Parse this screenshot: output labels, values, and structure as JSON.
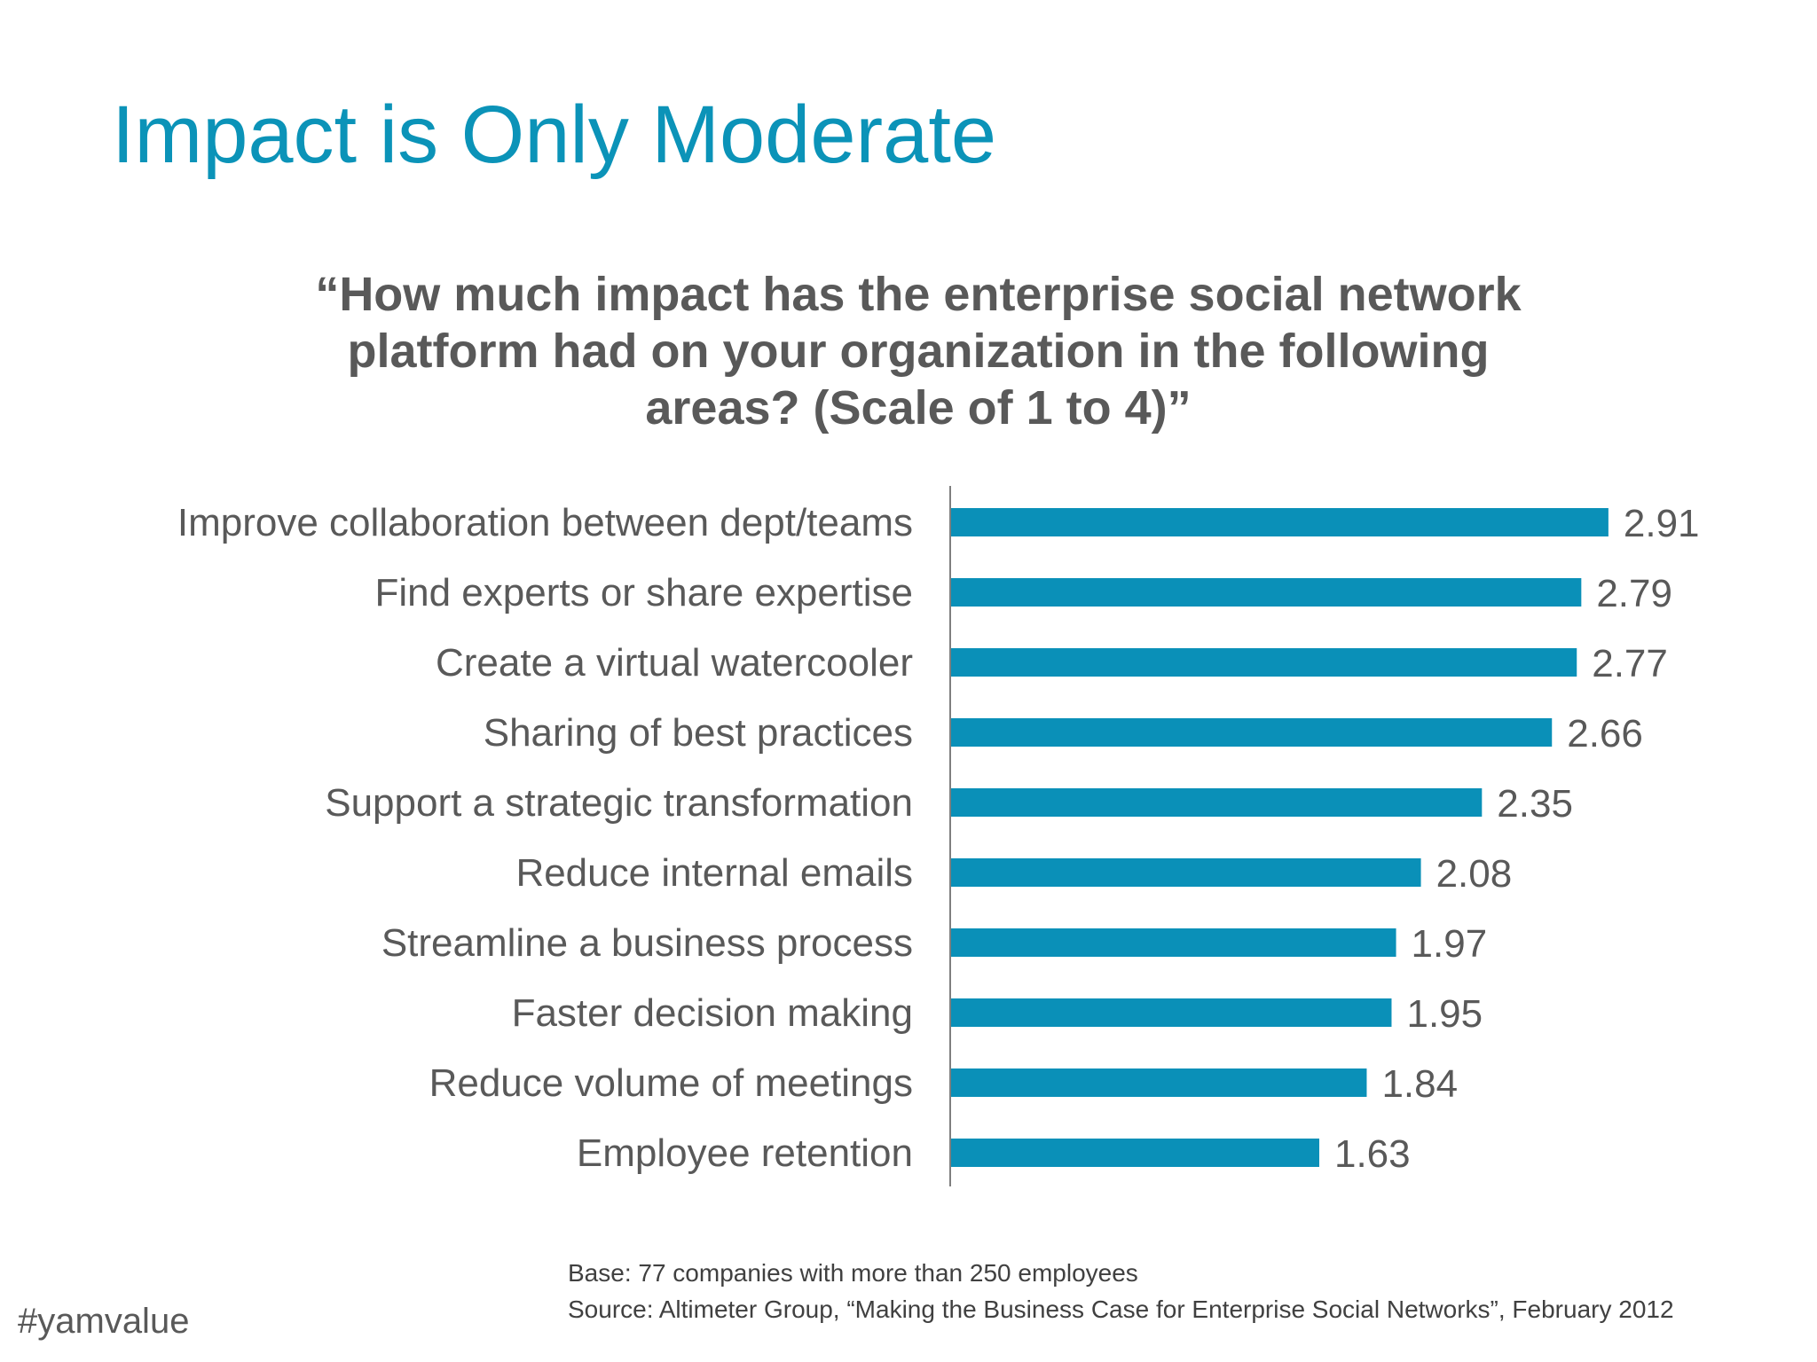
{
  "slide": {
    "title": "Impact is Only Moderate",
    "question_lines": [
      "“How much impact has the enterprise social network",
      "platform had on your organization in the following",
      "areas? (Scale of 1 to 4)”"
    ],
    "base_note": "Base: 77 companies with more than 250 employees",
    "source_note": "Source: Altimeter Group, “Making the Business Case for Enterprise Social Networks”, February 2012",
    "hashtag": "#yamvalue"
  },
  "colors": {
    "title": "#0b93b8",
    "bar": "#0a90b8",
    "text": "#595959",
    "axis": "#7f7f7f"
  },
  "chart_data": {
    "type": "bar",
    "orientation": "horizontal",
    "categories": [
      "Improve collaboration between dept/teams",
      "Find experts or share expertise",
      "Create a virtual watercooler",
      "Sharing of best practices",
      "Support a strategic transformation",
      "Reduce internal emails",
      "Streamline a business process",
      "Faster decision making",
      "Reduce volume of meetings",
      "Employee retention"
    ],
    "values": [
      2.91,
      2.79,
      2.77,
      2.66,
      2.35,
      2.08,
      1.97,
      1.95,
      1.84,
      1.63
    ],
    "data_labels": [
      "2.91",
      "2.79",
      "2.77",
      "2.66",
      "2.35",
      "2.08",
      "1.97",
      "1.95",
      "1.84",
      "1.63"
    ],
    "xlim": [
      0,
      4
    ],
    "grid": false,
    "legend": "none"
  }
}
